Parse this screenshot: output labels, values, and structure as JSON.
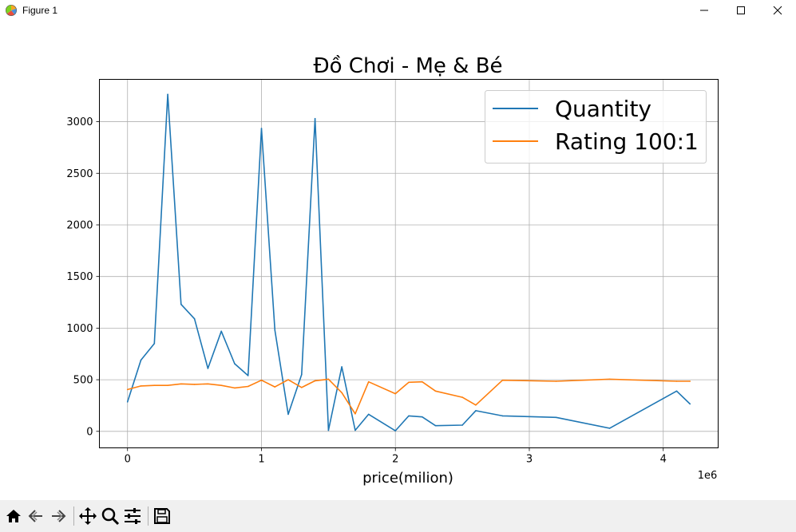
{
  "window": {
    "title": "Figure 1",
    "icon": "matplotlib-icon",
    "controls": [
      "minimize-icon",
      "maximize-icon",
      "close-icon"
    ]
  },
  "toolbar": {
    "buttons": [
      "home-icon",
      "back-icon",
      "forward-icon",
      "pan-icon",
      "zoom-icon",
      "configure-subplots-icon",
      "save-icon"
    ]
  },
  "chart_data": {
    "type": "line",
    "title": "Đồ Chơi - Mẹ & Bé",
    "xlabel": "price(milion)",
    "ylabel": "",
    "x_offset_text": "1e6",
    "xlim": [
      -210000,
      4410000
    ],
    "ylim": [
      -160,
      3410
    ],
    "xticks": [
      0,
      1000000,
      2000000,
      3000000,
      4000000
    ],
    "xtick_labels": [
      "0",
      "1",
      "2",
      "3",
      "4"
    ],
    "yticks": [
      0,
      500,
      1000,
      1500,
      2000,
      2500,
      3000
    ],
    "ytick_labels": [
      "0",
      "500",
      "1000",
      "1500",
      "2000",
      "2500",
      "3000"
    ],
    "grid": true,
    "legend_position": "upper right",
    "series": [
      {
        "name": "Quantity",
        "color": "#1f77b4",
        "x": [
          0,
          100000,
          200000,
          300000,
          400000,
          500000,
          600000,
          700000,
          800000,
          900000,
          1000000,
          1100000,
          1200000,
          1300000,
          1400000,
          1500000,
          1600000,
          1700000,
          1800000,
          2000000,
          2100000,
          2200000,
          2300000,
          2500000,
          2600000,
          2800000,
          3200000,
          3600000,
          4100000,
          4200000
        ],
        "y": [
          285,
          690,
          850,
          3265,
          1230,
          1090,
          610,
          970,
          655,
          540,
          2935,
          980,
          165,
          550,
          3030,
          10,
          625,
          10,
          165,
          5,
          150,
          140,
          55,
          60,
          200,
          150,
          135,
          30,
          390,
          265
        ]
      },
      {
        "name": "Rating 100:1",
        "color": "#ff7f0e",
        "x": [
          0,
          100000,
          200000,
          300000,
          400000,
          500000,
          600000,
          700000,
          800000,
          900000,
          1000000,
          1100000,
          1200000,
          1300000,
          1400000,
          1500000,
          1600000,
          1700000,
          1800000,
          2000000,
          2100000,
          2200000,
          2300000,
          2500000,
          2600000,
          2800000,
          3200000,
          3600000,
          4100000,
          4200000
        ],
        "y": [
          405,
          440,
          445,
          445,
          460,
          455,
          460,
          445,
          420,
          435,
          495,
          430,
          500,
          425,
          490,
          505,
          375,
          170,
          480,
          365,
          475,
          480,
          390,
          330,
          255,
          495,
          485,
          505,
          485,
          485
        ]
      }
    ]
  }
}
